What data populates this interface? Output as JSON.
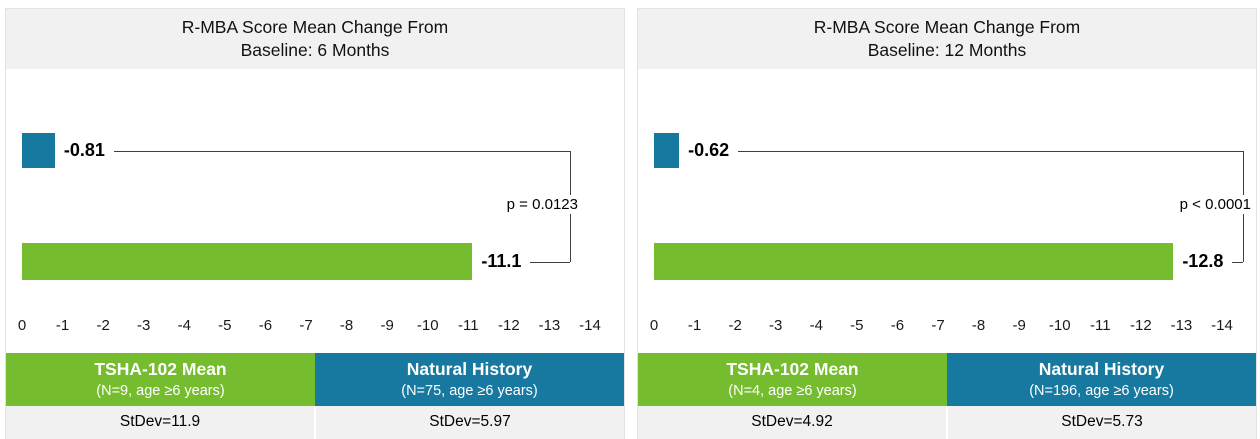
{
  "colors": {
    "tsha_green": "#76BC2F",
    "natural_blue": "#1778A0",
    "header_bg": "#F1F1F1",
    "line": "#404040"
  },
  "chart_data": [
    {
      "type": "bar",
      "orientation": "horizontal",
      "title_line1": "R-MBA Score Mean Change From",
      "title_line2": "Baseline: 6 Months",
      "p_label": "p = 0.0123",
      "axis": {
        "ticks": [
          "0",
          "-1",
          "-2",
          "-3",
          "-4",
          "-5",
          "-6",
          "-7",
          "-8",
          "-9",
          "-10",
          "-11",
          "-12",
          "-13",
          "-14"
        ],
        "xlim": [
          0,
          -14
        ],
        "grid": false
      },
      "bars": [
        {
          "group": "Natural History",
          "value": -0.81,
          "label": "-0.81",
          "color_key": "natural_blue"
        },
        {
          "group": "TSHA-102 Mean",
          "value": -11.1,
          "label": "-11.1",
          "color_key": "tsha_green"
        }
      ],
      "legend": [
        {
          "title": "TSHA-102 Mean",
          "subtitle": "(N=9, age ≥6 years)",
          "color_key": "tsha_green",
          "stdev": "StDev=11.9"
        },
        {
          "title": "Natural History",
          "subtitle": "(N=75, age ≥6 years)",
          "color_key": "natural_blue",
          "stdev": "StDev=5.97"
        }
      ],
      "layout": {
        "bracket_x": 564,
        "legend_position": "bottom"
      }
    },
    {
      "type": "bar",
      "orientation": "horizontal",
      "title_line1": "R-MBA Score Mean Change From",
      "title_line2": "Baseline: 12 Months",
      "p_label": "p < 0.0001",
      "axis": {
        "ticks": [
          "0",
          "-1",
          "-2",
          "-3",
          "-4",
          "-5",
          "-6",
          "-7",
          "-8",
          "-9",
          "-10",
          "-11",
          "-12",
          "-13",
          "-14"
        ],
        "xlim": [
          0,
          -14
        ],
        "grid": false
      },
      "bars": [
        {
          "group": "Natural History",
          "value": -0.62,
          "label": "-0.62",
          "color_key": "natural_blue"
        },
        {
          "group": "TSHA-102 Mean",
          "value": -12.8,
          "label": "-12.8",
          "color_key": "tsha_green"
        }
      ],
      "legend": [
        {
          "title": "TSHA-102 Mean",
          "subtitle": "(N=4, age ≥6 years)",
          "color_key": "tsha_green",
          "stdev": "StDev=4.92"
        },
        {
          "title": "Natural History",
          "subtitle": "(N=196, age ≥6 years)",
          "color_key": "natural_blue",
          "stdev": "StDev=5.73"
        }
      ],
      "layout": {
        "bracket_x": 605,
        "legend_position": "bottom"
      }
    }
  ]
}
